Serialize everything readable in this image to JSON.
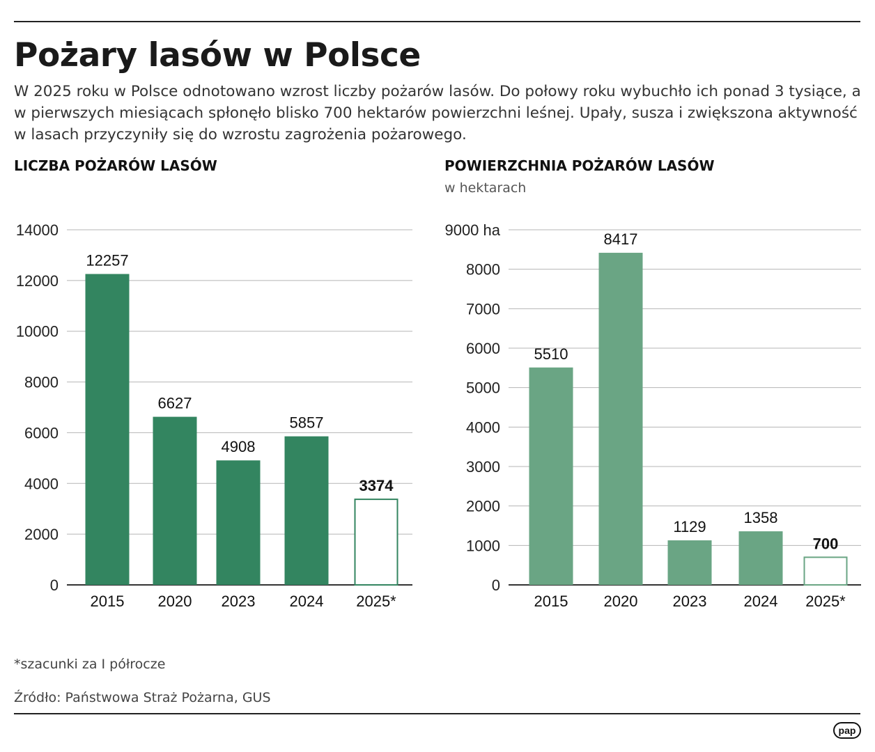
{
  "title": "Pożary lasów w Polsce",
  "lead": "W 2025 roku w Polsce odnotowano wzrost liczby pożarów lasów. Do połowy roku wybuchło ich ponad 3 tysiące, a w pierwszych miesiącach spłonęło blisko 700 hektarów powierzchni leśnej. Upały, susza i zwiększona aktywność w lasach przyczyniły się do wzrostu zagrożenia pożarowego.",
  "footnote": "*szacunki za I półrocze",
  "source": "Źródło: Państwowa Straż Pożarna, GUS",
  "logo_text": "pap",
  "colors": {
    "left_bar": "#338560",
    "right_bar": "#6aa584",
    "grid": "#b5b5b5",
    "axis": "#333333"
  },
  "chart_data": [
    {
      "type": "bar",
      "title": "LICZBA POŻARÓW LASÓW",
      "subtitle": "",
      "categories": [
        "2015",
        "2020",
        "2023",
        "2024",
        "2025*"
      ],
      "values": [
        12257,
        6627,
        4908,
        5857,
        3374
      ],
      "value_labels": [
        "12257",
        "6627",
        "4908",
        "5857",
        "3374"
      ],
      "outlined_last_bar": true,
      "ylim": [
        0,
        14000
      ],
      "yticks": [
        0,
        2000,
        4000,
        6000,
        8000,
        10000,
        12000,
        14000
      ],
      "ytick_labels": [
        "0",
        "2000",
        "4000",
        "6000",
        "8000",
        "10000",
        "12000",
        "14000"
      ],
      "grid": true
    },
    {
      "type": "bar",
      "title": "POWIERZCHNIA POŻARÓW LASÓW",
      "subtitle": "w hektarach",
      "categories": [
        "2015",
        "2020",
        "2023",
        "2024",
        "2025*"
      ],
      "values": [
        5510,
        8417,
        1129,
        1358,
        700
      ],
      "value_labels": [
        "5510",
        "8417",
        "1129",
        "1358",
        "700"
      ],
      "outlined_last_bar": true,
      "ylim": [
        0,
        9000
      ],
      "yticks": [
        0,
        1000,
        2000,
        3000,
        4000,
        5000,
        6000,
        7000,
        8000,
        9000
      ],
      "ytick_labels": [
        "0",
        "1000",
        "2000",
        "3000",
        "4000",
        "5000",
        "6000",
        "7000",
        "8000",
        "9000 ha"
      ],
      "grid": true
    }
  ]
}
